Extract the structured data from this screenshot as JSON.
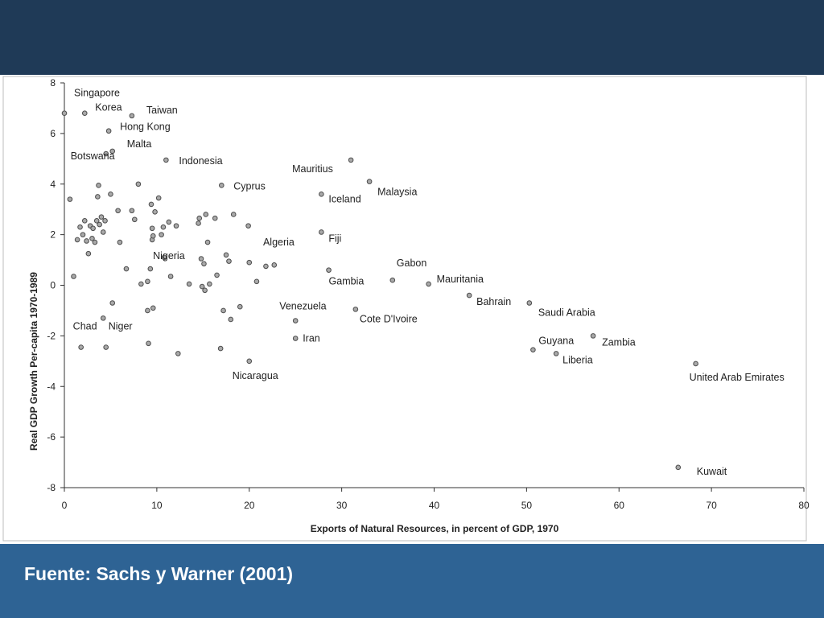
{
  "slide": {
    "caption": "Fuente: Sachs y Warner (2001)",
    "colors": {
      "top_band": "#1f3a57",
      "bottom_band": "#2e6394",
      "point_fill": "#a9a9a9",
      "point_stroke": "#4d4d4d"
    }
  },
  "chart_data": {
    "type": "scatter",
    "title": "",
    "xlabel": "Exports of Natural Resources, in percent of GDP, 1970",
    "ylabel": "Real GDP Growth Per-capita 1970-1989",
    "xlim": [
      0,
      80
    ],
    "ylim": [
      -8,
      8
    ],
    "xticks": [
      "0",
      "10",
      "20",
      "30",
      "40",
      "50",
      "60",
      "70",
      "80"
    ],
    "yticks": [
      "8",
      "6",
      "4",
      "2",
      "0",
      "-2",
      "-4",
      "-6",
      "-8"
    ],
    "grid": false,
    "points": [
      {
        "x": 0,
        "y": 6.8,
        "label": "Singapore"
      },
      {
        "x": 2.2,
        "y": 6.8,
        "label": "Korea"
      },
      {
        "x": 7.3,
        "y": 6.7,
        "label": "Taiwan"
      },
      {
        "x": 4.8,
        "y": 6.1,
        "label": "Hong Kong"
      },
      {
        "x": 5.2,
        "y": 5.3,
        "label": "Malta"
      },
      {
        "x": 4.5,
        "y": 5.2,
        "label": "Botswana"
      },
      {
        "x": 11,
        "y": 4.95,
        "label": "Indonesia"
      },
      {
        "x": 17,
        "y": 3.95,
        "label": "Cyprus"
      },
      {
        "x": 31,
        "y": 4.95,
        "label": "Mauritius"
      },
      {
        "x": 33,
        "y": 4.1,
        "label": "Malaysia"
      },
      {
        "x": 27.8,
        "y": 3.6,
        "label": "Iceland"
      },
      {
        "x": 27.8,
        "y": 2.1,
        "label": "Fiji"
      },
      {
        "x": 10.8,
        "y": 1.1,
        "label": "Nigeria"
      },
      {
        "x": 35.5,
        "y": 0.2,
        "label": "Gabon"
      },
      {
        "x": 28.6,
        "y": 0.6,
        "label": "Gambia"
      },
      {
        "x": 39.4,
        "y": 0.05,
        "label": "Mauritania"
      },
      {
        "x": 43.8,
        "y": -0.4,
        "label": "Bahrain"
      },
      {
        "x": 50.3,
        "y": -0.7,
        "label": "Saudi Arabia"
      },
      {
        "x": 25,
        "y": -1.4,
        "label": "Venezuela"
      },
      {
        "x": 31.5,
        "y": -0.95,
        "label": "Cote D'Ivoire"
      },
      {
        "x": 25,
        "y": -2.1,
        "label": "Iran"
      },
      {
        "x": 20,
        "y": -3,
        "label": "Nicaragua"
      },
      {
        "x": 1.8,
        "y": -2.45,
        "label": "Chad"
      },
      {
        "x": 4.5,
        "y": -2.45,
        "label": "Niger"
      },
      {
        "x": 50.7,
        "y": -2.55,
        "label": "Guyana"
      },
      {
        "x": 57.2,
        "y": -2.0,
        "label": "Zambia"
      },
      {
        "x": 53.2,
        "y": -2.7,
        "label": "Liberia"
      },
      {
        "x": 68.3,
        "y": -3.1,
        "label": "United Arab Emirates"
      },
      {
        "x": 66.4,
        "y": -7.2,
        "label": "Kuwait"
      },
      {
        "x": 0.6,
        "y": 3.4
      },
      {
        "x": 1,
        "y": 0.35
      },
      {
        "x": 1.4,
        "y": 1.8
      },
      {
        "x": 1.7,
        "y": 2.3
      },
      {
        "x": 2,
        "y": 2.0
      },
      {
        "x": 2.2,
        "y": 2.55
      },
      {
        "x": 2.4,
        "y": 1.75
      },
      {
        "x": 2.6,
        "y": 1.25
      },
      {
        "x": 2.8,
        "y": 2.35
      },
      {
        "x": 3,
        "y": 1.85
      },
      {
        "x": 3.1,
        "y": 2.25
      },
      {
        "x": 3.3,
        "y": 1.7
      },
      {
        "x": 3.5,
        "y": 2.55
      },
      {
        "x": 3.6,
        "y": 3.5
      },
      {
        "x": 3.7,
        "y": 3.95
      },
      {
        "x": 3.8,
        "y": 2.4
      },
      {
        "x": 4,
        "y": 2.7
      },
      {
        "x": 4.2,
        "y": 2.1
      },
      {
        "x": 4.4,
        "y": 2.55
      },
      {
        "x": 4.2,
        "y": -1.3
      },
      {
        "x": 5,
        "y": 3.6
      },
      {
        "x": 5.2,
        "y": -0.7
      },
      {
        "x": 5.8,
        "y": 2.95
      },
      {
        "x": 6,
        "y": 1.7
      },
      {
        "x": 6.7,
        "y": 0.65
      },
      {
        "x": 7.3,
        "y": 2.95
      },
      {
        "x": 7.6,
        "y": 2.6
      },
      {
        "x": 8,
        "y": 4.0
      },
      {
        "x": 8.3,
        "y": 0.05
      },
      {
        "x": 9,
        "y": 0.15
      },
      {
        "x": 9,
        "y": -1.0
      },
      {
        "x": 9.1,
        "y": -2.3
      },
      {
        "x": 9.3,
        "y": 0.65
      },
      {
        "x": 9.4,
        "y": 3.2
      },
      {
        "x": 9.5,
        "y": 2.25
      },
      {
        "x": 9.5,
        "y": 1.8
      },
      {
        "x": 9.6,
        "y": 1.95
      },
      {
        "x": 9.6,
        "y": -0.9
      },
      {
        "x": 9.8,
        "y": 2.9
      },
      {
        "x": 10.2,
        "y": 3.45
      },
      {
        "x": 10.5,
        "y": 2.0
      },
      {
        "x": 10.7,
        "y": 2.3
      },
      {
        "x": 11.3,
        "y": 2.5
      },
      {
        "x": 11.5,
        "y": 0.35
      },
      {
        "x": 12.1,
        "y": 2.35
      },
      {
        "x": 12.3,
        "y": -2.7
      },
      {
        "x": 13.5,
        "y": 0.05
      },
      {
        "x": 14.5,
        "y": 2.45
      },
      {
        "x": 14.6,
        "y": 2.65
      },
      {
        "x": 14.8,
        "y": 1.05
      },
      {
        "x": 14.9,
        "y": -0.05
      },
      {
        "x": 15.1,
        "y": 0.85
      },
      {
        "x": 15.2,
        "y": -0.2
      },
      {
        "x": 15.3,
        "y": 2.8
      },
      {
        "x": 15.5,
        "y": 1.7
      },
      {
        "x": 15.7,
        "y": 0.05
      },
      {
        "x": 16.3,
        "y": 2.65
      },
      {
        "x": 16.5,
        "y": 0.4
      },
      {
        "x": 17.2,
        "y": -1.0
      },
      {
        "x": 17.5,
        "y": 1.2
      },
      {
        "x": 17.8,
        "y": 0.95
      },
      {
        "x": 18,
        "y": -1.35
      },
      {
        "x": 18.3,
        "y": 2.8
      },
      {
        "x": 19,
        "y": -0.85
      },
      {
        "x": 20,
        "y": 0.9
      },
      {
        "x": 20.8,
        "y": 0.15
      },
      {
        "x": 21.8,
        "y": 0.75
      },
      {
        "x": 22.7,
        "y": 0.8
      },
      {
        "x": 16.9,
        "y": -2.5
      },
      {
        "x": 19.9,
        "y": 2.35
      }
    ]
  }
}
